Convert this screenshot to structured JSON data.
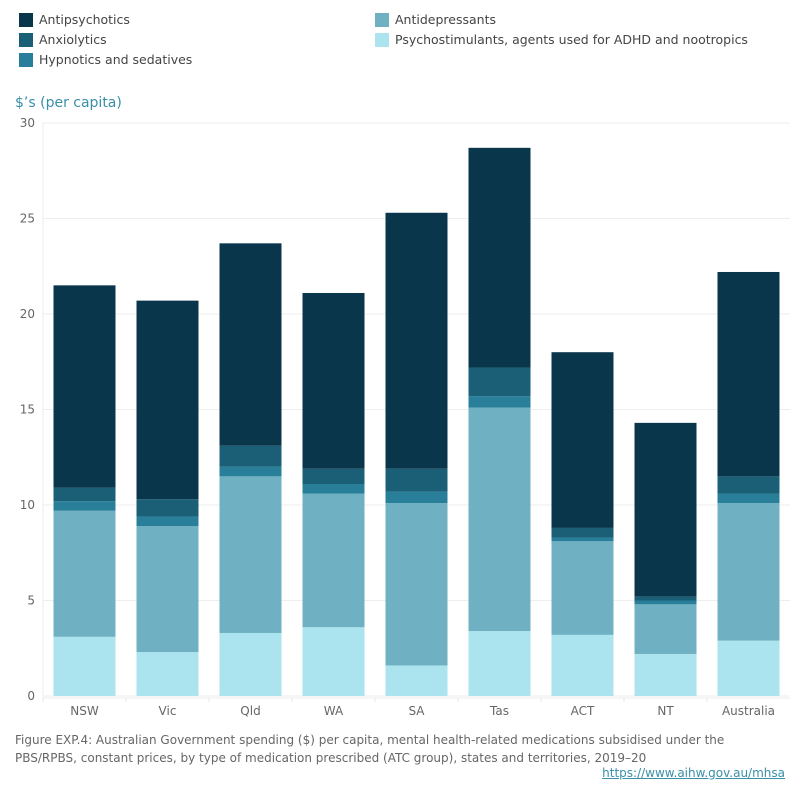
{
  "chart_data": {
    "type": "bar",
    "stacked": true,
    "title": "",
    "ylabel": "$’s (per capita)",
    "xlabel": "",
    "ylim": [
      0,
      30
    ],
    "yticks": [
      0,
      5,
      10,
      15,
      20,
      25,
      30
    ],
    "grid": true,
    "legend_position": "top",
    "categories": [
      "NSW",
      "Vic",
      "Qld",
      "WA",
      "SA",
      "Tas",
      "ACT",
      "NT",
      "Australia"
    ],
    "series": [
      {
        "name": "Psychostimulants, agents used for ADHD and nootropics",
        "color": "#abe3ee",
        "values": [
          3.1,
          2.3,
          3.3,
          3.6,
          1.6,
          3.4,
          3.2,
          2.2,
          2.9
        ]
      },
      {
        "name": "Antidepressants",
        "color": "#6fb1c2",
        "values": [
          6.6,
          6.6,
          8.2,
          7.0,
          8.5,
          11.7,
          4.9,
          2.6,
          7.2
        ]
      },
      {
        "name": "Hypnotics and sedatives",
        "color": "#297f99",
        "values": [
          0.5,
          0.5,
          0.5,
          0.5,
          0.6,
          0.6,
          0.2,
          0.2,
          0.5
        ]
      },
      {
        "name": "Anxiolytics",
        "color": "#1a5f75",
        "values": [
          0.7,
          0.9,
          1.1,
          0.8,
          1.2,
          1.5,
          0.5,
          0.2,
          0.9
        ]
      },
      {
        "name": "Antipsychotics",
        "color": "#0a364c",
        "values": [
          10.6,
          10.4,
          10.6,
          9.2,
          13.4,
          11.5,
          9.2,
          9.1,
          10.7
        ]
      }
    ]
  },
  "legend": {
    "items": [
      {
        "label": "Antipsychotics",
        "color": "#0a364c"
      },
      {
        "label": "Anxiolytics",
        "color": "#1a5f75"
      },
      {
        "label": "Hypnotics and sedatives",
        "color": "#297f99"
      },
      {
        "label": "Antidepressants",
        "color": "#6fb1c2"
      },
      {
        "label": "Psychostimulants, agents used for ADHD and nootropics",
        "color": "#abe3ee"
      }
    ]
  },
  "caption": "Figure EXP.4: Australian Government spending ($) per capita, mental health-related medications subsidised under the PBS/RPBS, constant prices, by type of medication prescribed (ATC group), states and territories, 2019–20",
  "source_link": "https://www.aihw.gov.au/mhsa"
}
